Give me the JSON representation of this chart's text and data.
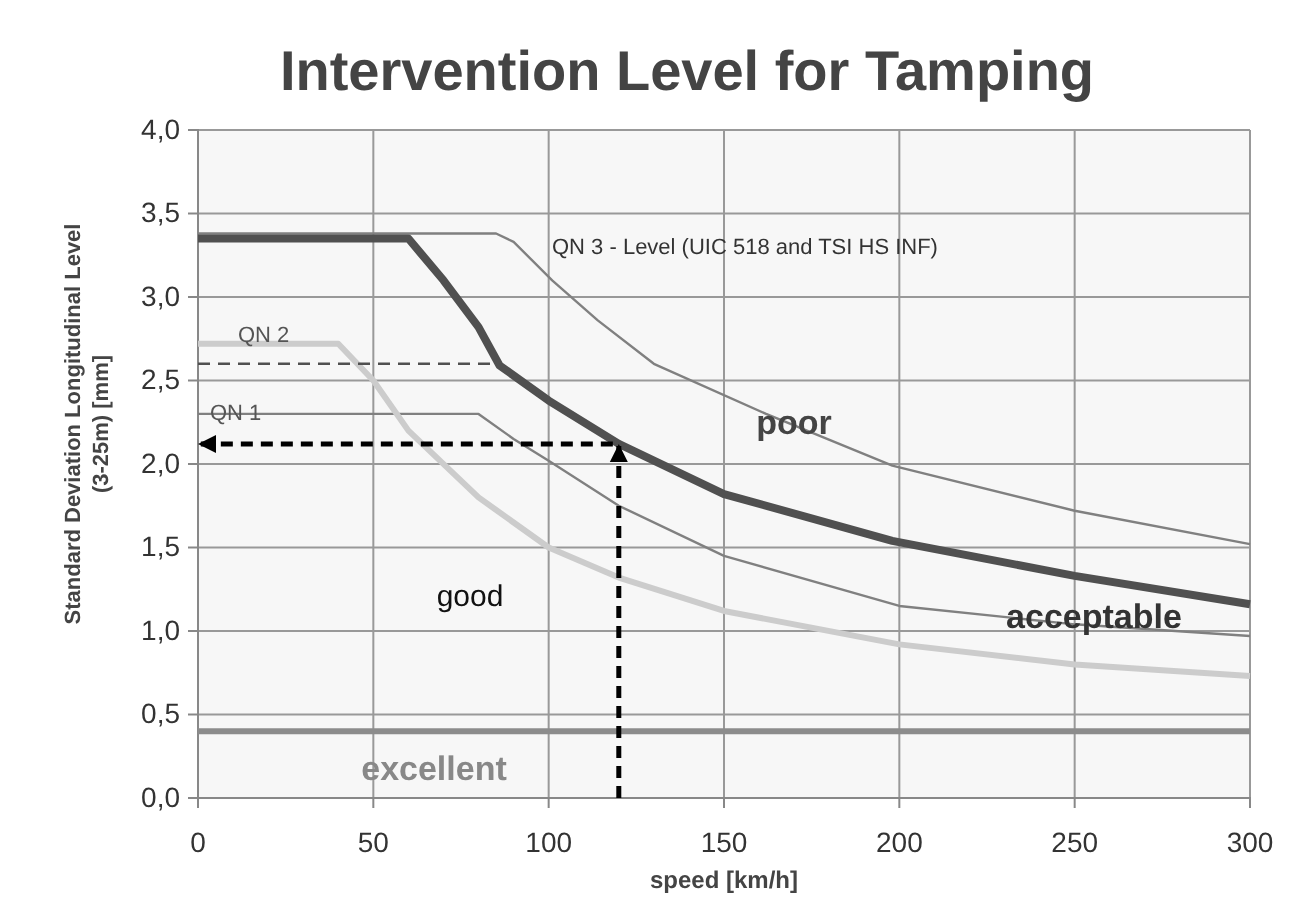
{
  "chart_data": {
    "type": "line",
    "title": "Intervention Level for Tamping",
    "xlabel": "speed [km/h]",
    "ylabel": "Standard Deviation Longitudinal Level (3-25m)  [mm]",
    "xlim": [
      0,
      300
    ],
    "xticks": [
      0,
      50,
      100,
      150,
      200,
      250,
      300
    ],
    "ylim": [
      0,
      4
    ],
    "yticks": [
      {
        "value": 0,
        "label": "0,0"
      },
      {
        "value": 0.5,
        "label": "0,5"
      },
      {
        "value": 1,
        "label": "1,0"
      },
      {
        "value": 1.5,
        "label": "1,5"
      },
      {
        "value": 2,
        "label": "2,0"
      },
      {
        "value": 2.5,
        "label": "2,5"
      },
      {
        "value": 3,
        "label": "3,0"
      },
      {
        "value": 3.5,
        "label": "3,5"
      },
      {
        "value": 4,
        "label": "4,0"
      }
    ],
    "grid": true,
    "marker": "none",
    "series": [
      {
        "color": "#808080",
        "line_style": "solid",
        "x": [
          0,
          85,
          90,
          101,
          114,
          130,
          162,
          198,
          250,
          300
        ],
        "values": [
          3.38,
          3.38,
          3.33,
          3.1,
          2.86,
          2.6,
          2.3,
          1.99,
          1.72,
          1.52
        ]
      },
      {
        "color": "#505050",
        "line_style": "solid",
        "x": [
          0,
          60,
          70,
          80,
          86,
          100,
          120,
          150,
          198,
          250,
          300
        ],
        "values": [
          3.35,
          3.35,
          3.1,
          2.82,
          2.59,
          2.38,
          2.12,
          1.82,
          1.54,
          1.33,
          1.16
        ]
      },
      {
        "color": "#808080",
        "line_style": "solid",
        "x": [
          0,
          80,
          90,
          100,
          120,
          150,
          200,
          250,
          300
        ],
        "values": [
          2.3,
          2.3,
          2.15,
          2.02,
          1.75,
          1.45,
          1.15,
          1.04,
          0.97
        ]
      },
      {
        "color": "#cccccc",
        "line_style": "solid",
        "x": [
          0,
          40,
          50,
          60,
          80,
          100,
          120,
          150,
          200,
          250,
          300
        ],
        "values": [
          2.72,
          2.72,
          2.5,
          2.2,
          1.8,
          1.5,
          1.32,
          1.12,
          0.92,
          0.8,
          0.73
        ]
      },
      {
        "color": "#505050",
        "line_style": "dashed",
        "x": [
          0,
          86
        ],
        "values": [
          2.6,
          2.6
        ]
      },
      {
        "color": "#000000",
        "line_style": "dashed",
        "x": [
          120,
          120,
          0
        ],
        "values": [
          0,
          2.12,
          2.12
        ]
      }
    ],
    "ref_lines": [
      {
        "axis": "y",
        "value": 0.4,
        "color": "#8c8c8c"
      }
    ],
    "annotations": [
      "QN 3 - Level (UIC 518 and TSI HS INF)",
      "QN 2",
      "QN 1",
      "poor",
      "good",
      "acceptable",
      "excellent"
    ]
  }
}
